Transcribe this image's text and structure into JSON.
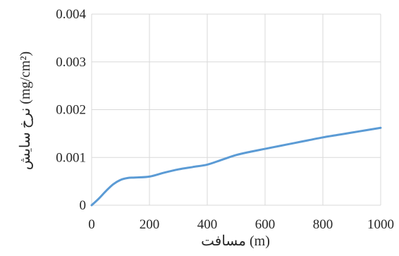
{
  "chart_data": {
    "type": "line",
    "title": "",
    "xlabel": "مسافت (m)",
    "ylabel": "نرخ سایش (mg/cm²)",
    "xlim": [
      0,
      1000
    ],
    "ylim": [
      0,
      0.004
    ],
    "xticks": [
      0,
      200,
      400,
      600,
      800,
      1000
    ],
    "xtick_labels": [
      "0",
      "200",
      "400",
      "600",
      "800",
      "1000"
    ],
    "yticks": [
      0,
      0.001,
      0.002,
      0.003,
      0.004
    ],
    "ytick_labels": [
      "0",
      "0.001",
      "0.002",
      "0.003",
      "0.004"
    ],
    "grid": true,
    "legend": "none",
    "line_color": "#5b9bd5",
    "series": [
      {
        "x": [
          0,
          25,
          50,
          75,
          100,
          125,
          150,
          200,
          250,
          300,
          350,
          400,
          450,
          500,
          550,
          600,
          650,
          700,
          750,
          800,
          850,
          900,
          950,
          1000
        ],
        "values": [
          0,
          0.00014,
          0.0003,
          0.00044,
          0.00053,
          0.00057,
          0.00058,
          0.0006,
          0.00068,
          0.00075,
          0.0008,
          0.00085,
          0.00095,
          0.00105,
          0.00112,
          0.00118,
          0.00124,
          0.0013,
          0.00136,
          0.00142,
          0.00147,
          0.00152,
          0.00157,
          0.00162
        ]
      }
    ]
  }
}
